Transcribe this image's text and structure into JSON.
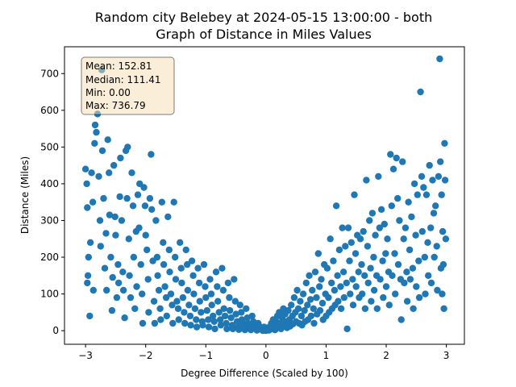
{
  "chart_data": {
    "type": "scatter",
    "title": "Random city Belebey at 2024-05-15 13:00:00  - both",
    "subtitle": "Graph of Distance in Miles Values",
    "xlabel": "Degree Difference (Scaled by 100)",
    "ylabel": "Distance (Miles)",
    "xlim": [
      -3.35,
      3.3
    ],
    "ylim": [
      -37,
      773
    ],
    "xticks": [
      -3,
      -2,
      -1,
      0,
      1,
      2,
      3
    ],
    "yticks": [
      0,
      100,
      200,
      300,
      400,
      500,
      600,
      700
    ],
    "grid": false,
    "marker_color": "#1f77b4",
    "stats_box": {
      "mean": "Mean: 152.81",
      "median": "Median: 111.41",
      "min": "Min: 0.00",
      "max": "Max: 736.79",
      "facecolor": "#f5deb3"
    },
    "points": [
      [
        -3.0,
        440
      ],
      [
        -2.98,
        400
      ],
      [
        -2.97,
        335
      ],
      [
        -2.95,
        200
      ],
      [
        -2.96,
        150
      ],
      [
        -2.97,
        130
      ],
      [
        -2.93,
        40
      ],
      [
        -2.92,
        240
      ],
      [
        -2.9,
        430
      ],
      [
        -2.88,
        350
      ],
      [
        -2.87,
        110
      ],
      [
        -2.85,
        510
      ],
      [
        -2.84,
        560
      ],
      [
        -2.82,
        540
      ],
      [
        -2.8,
        590
      ],
      [
        -2.78,
        420
      ],
      [
        -2.76,
        300
      ],
      [
        -2.75,
        230
      ],
      [
        -2.73,
        710
      ],
      [
        -2.72,
        490
      ],
      [
        -2.7,
        360
      ],
      [
        -2.68,
        170
      ],
      [
        -2.66,
        265
      ],
      [
        -2.65,
        110
      ],
      [
        -2.63,
        520
      ],
      [
        -2.61,
        430
      ],
      [
        -2.6,
        315
      ],
      [
        -2.58,
        200
      ],
      [
        -2.56,
        55
      ],
      [
        -2.55,
        145
      ],
      [
        -2.53,
        450
      ],
      [
        -2.51,
        310
      ],
      [
        -2.5,
        260
      ],
      [
        -2.48,
        90
      ],
      [
        -2.46,
        180
      ],
      [
        -2.45,
        130
      ],
      [
        -2.43,
        365
      ],
      [
        -2.42,
        470
      ],
      [
        -2.4,
        300
      ],
      [
        -2.38,
        160
      ],
      [
        -2.37,
        110
      ],
      [
        -2.35,
        35
      ],
      [
        -2.33,
        490
      ],
      [
        -2.31,
        360
      ],
      [
        -2.3,
        500
      ],
      [
        -2.28,
        250
      ],
      [
        -2.27,
        150
      ],
      [
        -2.25,
        90
      ],
      [
        -2.23,
        430
      ],
      [
        -2.21,
        340
      ],
      [
        -2.2,
        200
      ],
      [
        -2.18,
        60
      ],
      [
        -2.16,
        270
      ],
      [
        -2.15,
        120
      ],
      [
        -2.13,
        370
      ],
      [
        -2.11,
        280
      ],
      [
        -2.1,
        400
      ],
      [
        -2.08,
        180
      ],
      [
        -2.06,
        100
      ],
      [
        -2.05,
        20
      ],
      [
        -2.03,
        390
      ],
      [
        -2.01,
        340
      ],
      [
        -2.0,
        260
      ],
      [
        -1.98,
        220
      ],
      [
        -1.96,
        140
      ],
      [
        -1.95,
        50
      ],
      [
        -1.93,
        360
      ],
      [
        -1.91,
        480
      ],
      [
        -1.9,
        330
      ],
      [
        -1.88,
        190
      ],
      [
        -1.86,
        80
      ],
      [
        -1.85,
        20
      ],
      [
        -1.83,
        300
      ],
      [
        -1.81,
        200
      ],
      [
        -1.8,
        150
      ],
      [
        -1.78,
        110
      ],
      [
        -1.76,
        60
      ],
      [
        -1.75,
        30
      ],
      [
        -1.73,
        350
      ],
      [
        -1.71,
        240
      ],
      [
        -1.7,
        180
      ],
      [
        -1.68,
        120
      ],
      [
        -1.66,
        90
      ],
      [
        -1.65,
        40
      ],
      [
        -1.63,
        310
      ],
      [
        -1.61,
        220
      ],
      [
        -1.6,
        160
      ],
      [
        -1.58,
        100
      ],
      [
        -1.56,
        70
      ],
      [
        -1.55,
        20
      ],
      [
        -1.53,
        350
      ],
      [
        -1.51,
        200
      ],
      [
        -1.5,
        140
      ],
      [
        -1.48,
        80
      ],
      [
        -1.46,
        60
      ],
      [
        -1.45,
        30
      ],
      [
        -1.43,
        240
      ],
      [
        -1.41,
        170
      ],
      [
        -1.4,
        130
      ],
      [
        -1.38,
        90
      ],
      [
        -1.36,
        50
      ],
      [
        -1.35,
        20
      ],
      [
        -1.33,
        220
      ],
      [
        -1.31,
        180
      ],
      [
        -1.3,
        110
      ],
      [
        -1.28,
        70
      ],
      [
        -1.26,
        40
      ],
      [
        -1.25,
        15
      ],
      [
        -1.23,
        190
      ],
      [
        -1.21,
        150
      ],
      [
        -1.2,
        100
      ],
      [
        -1.18,
        60
      ],
      [
        -1.16,
        30
      ],
      [
        -1.15,
        10
      ],
      [
        -1.13,
        170
      ],
      [
        -1.11,
        130
      ],
      [
        -1.1,
        80
      ],
      [
        -1.08,
        50
      ],
      [
        -1.06,
        25
      ],
      [
        -1.05,
        15
      ],
      [
        -1.03,
        180
      ],
      [
        -1.01,
        120
      ],
      [
        -1.0,
        90
      ],
      [
        -0.98,
        55
      ],
      [
        -0.96,
        30
      ],
      [
        -0.95,
        10
      ],
      [
        -0.93,
        140
      ],
      [
        -0.91,
        100
      ],
      [
        -0.9,
        70
      ],
      [
        -0.88,
        40
      ],
      [
        -0.86,
        25
      ],
      [
        -0.85,
        5
      ],
      [
        -0.83,
        160
      ],
      [
        -0.81,
        120
      ],
      [
        -0.8,
        80
      ],
      [
        -0.78,
        50
      ],
      [
        -0.76,
        30
      ],
      [
        -0.75,
        15
      ],
      [
        -0.73,
        170
      ],
      [
        -0.71,
        110
      ],
      [
        -0.7,
        60
      ],
      [
        -0.68,
        40
      ],
      [
        -0.66,
        20
      ],
      [
        -0.65,
        5
      ],
      [
        -0.63,
        130
      ],
      [
        -0.61,
        90
      ],
      [
        -0.6,
        55
      ],
      [
        -0.58,
        35
      ],
      [
        -0.56,
        15
      ],
      [
        -0.55,
        5
      ],
      [
        -0.53,
        140
      ],
      [
        -0.51,
        80
      ],
      [
        -0.5,
        45
      ],
      [
        -0.48,
        25
      ],
      [
        -0.46,
        10
      ],
      [
        -0.45,
        3
      ],
      [
        -0.43,
        70
      ],
      [
        -0.41,
        50
      ],
      [
        -0.4,
        30
      ],
      [
        -0.38,
        20
      ],
      [
        -0.36,
        10
      ],
      [
        -0.35,
        2
      ],
      [
        -0.33,
        60
      ],
      [
        -0.31,
        35
      ],
      [
        -0.3,
        20
      ],
      [
        -0.28,
        12
      ],
      [
        -0.26,
        8
      ],
      [
        -0.25,
        2
      ],
      [
        -0.23,
        40
      ],
      [
        -0.21,
        25
      ],
      [
        -0.2,
        15
      ],
      [
        -0.18,
        8
      ],
      [
        -0.16,
        5
      ],
      [
        -0.15,
        1
      ],
      [
        -0.13,
        20
      ],
      [
        -0.11,
        12
      ],
      [
        -0.1,
        8
      ],
      [
        -0.08,
        4
      ],
      [
        -0.06,
        2
      ],
      [
        -0.05,
        0
      ],
      [
        -0.03,
        10
      ],
      [
        -0.01,
        5
      ],
      [
        0.0,
        0
      ],
      [
        0.02,
        3
      ],
      [
        0.04,
        8
      ],
      [
        0.05,
        1
      ],
      [
        0.07,
        12
      ],
      [
        0.09,
        20
      ],
      [
        0.1,
        5
      ],
      [
        0.12,
        30
      ],
      [
        0.14,
        15
      ],
      [
        0.15,
        2
      ],
      [
        0.17,
        25
      ],
      [
        0.19,
        40
      ],
      [
        0.2,
        10
      ],
      [
        0.22,
        50
      ],
      [
        0.24,
        20
      ],
      [
        0.25,
        5
      ],
      [
        0.27,
        35
      ],
      [
        0.29,
        60
      ],
      [
        0.3,
        15
      ],
      [
        0.32,
        45
      ],
      [
        0.34,
        25
      ],
      [
        0.35,
        8
      ],
      [
        0.37,
        55
      ],
      [
        0.39,
        30
      ],
      [
        0.4,
        12
      ],
      [
        0.42,
        70
      ],
      [
        0.44,
        40
      ],
      [
        0.45,
        18
      ],
      [
        0.47,
        90
      ],
      [
        0.49,
        50
      ],
      [
        0.5,
        25
      ],
      [
        0.52,
        110
      ],
      [
        0.54,
        60
      ],
      [
        0.55,
        20
      ],
      [
        0.57,
        80
      ],
      [
        0.59,
        40
      ],
      [
        0.6,
        15
      ],
      [
        0.62,
        100
      ],
      [
        0.64,
        55
      ],
      [
        0.65,
        25
      ],
      [
        0.67,
        130
      ],
      [
        0.69,
        70
      ],
      [
        0.7,
        30
      ],
      [
        0.72,
        150
      ],
      [
        0.74,
        85
      ],
      [
        0.75,
        40
      ],
      [
        0.77,
        110
      ],
      [
        0.79,
        60
      ],
      [
        0.8,
        20
      ],
      [
        0.82,
        160
      ],
      [
        0.84,
        90
      ],
      [
        0.85,
        45
      ],
      [
        0.87,
        210
      ],
      [
        0.89,
        120
      ],
      [
        0.9,
        55
      ],
      [
        0.92,
        140
      ],
      [
        0.94,
        75
      ],
      [
        0.95,
        30
      ],
      [
        0.97,
        180
      ],
      [
        0.99,
        100
      ],
      [
        1.0,
        40
      ],
      [
        1.02,
        170
      ],
      [
        1.04,
        90
      ],
      [
        1.05,
        50
      ],
      [
        1.07,
        250
      ],
      [
        1.09,
        130
      ],
      [
        1.1,
        60
      ],
      [
        1.12,
        190
      ],
      [
        1.14,
        110
      ],
      [
        1.15,
        70
      ],
      [
        1.17,
        340
      ],
      [
        1.19,
        150
      ],
      [
        1.2,
        80
      ],
      [
        1.22,
        220
      ],
      [
        1.24,
        120
      ],
      [
        1.25,
        60
      ],
      [
        1.27,
        280
      ],
      [
        1.29,
        160
      ],
      [
        1.3,
        90
      ],
      [
        1.32,
        230
      ],
      [
        1.34,
        130
      ],
      [
        1.35,
        5
      ],
      [
        1.37,
        280
      ],
      [
        1.39,
        190
      ],
      [
        1.4,
        100
      ],
      [
        1.42,
        240
      ],
      [
        1.44,
        140
      ],
      [
        1.45,
        70
      ],
      [
        1.47,
        370
      ],
      [
        1.49,
        210
      ],
      [
        1.5,
        120
      ],
      [
        1.52,
        260
      ],
      [
        1.54,
        160
      ],
      [
        1.55,
        90
      ],
      [
        1.57,
        250
      ],
      [
        1.59,
        180
      ],
      [
        1.6,
        100
      ],
      [
        1.62,
        270
      ],
      [
        1.64,
        150
      ],
      [
        1.65,
        60
      ],
      [
        1.67,
        410
      ],
      [
        1.69,
        230
      ],
      [
        1.7,
        130
      ],
      [
        1.72,
        300
      ],
      [
        1.74,
        170
      ],
      [
        1.75,
        80
      ],
      [
        1.77,
        320
      ],
      [
        1.79,
        200
      ],
      [
        1.8,
        110
      ],
      [
        1.82,
        260
      ],
      [
        1.84,
        150
      ],
      [
        1.85,
        60
      ],
      [
        1.87,
        420
      ],
      [
        1.89,
        280
      ],
      [
        1.9,
        140
      ],
      [
        1.92,
        330
      ],
      [
        1.94,
        190
      ],
      [
        1.95,
        90
      ],
      [
        1.97,
        290
      ],
      [
        1.99,
        210
      ],
      [
        2.0,
        120
      ],
      [
        2.02,
        250
      ],
      [
        2.04,
        160
      ],
      [
        2.05,
        70
      ],
      [
        2.07,
        480
      ],
      [
        2.09,
        340
      ],
      [
        2.1,
        150
      ],
      [
        2.12,
        440
      ],
      [
        2.14,
        210
      ],
      [
        2.15,
        100
      ],
      [
        2.17,
        470
      ],
      [
        2.19,
        360
      ],
      [
        2.2,
        180
      ],
      [
        2.22,
        300
      ],
      [
        2.24,
        140
      ],
      [
        2.25,
        30
      ],
      [
        2.27,
        460
      ],
      [
        2.29,
        250
      ],
      [
        2.3,
        130
      ],
      [
        2.32,
        280
      ],
      [
        2.34,
        160
      ],
      [
        2.35,
        80
      ],
      [
        2.37,
        350
      ],
      [
        2.39,
        220
      ],
      [
        2.4,
        140
      ],
      [
        2.42,
        310
      ],
      [
        2.44,
        170
      ],
      [
        2.45,
        60
      ],
      [
        2.47,
        400
      ],
      [
        2.49,
        260
      ],
      [
        2.5,
        120
      ],
      [
        2.52,
        370
      ],
      [
        2.54,
        190
      ],
      [
        2.55,
        90
      ],
      [
        2.57,
        650
      ],
      [
        2.59,
        420
      ],
      [
        2.6,
        270
      ],
      [
        2.62,
        390
      ],
      [
        2.64,
        200
      ],
      [
        2.65,
        100
      ],
      [
        2.67,
        370
      ],
      [
        2.69,
        240
      ],
      [
        2.7,
        150
      ],
      [
        2.72,
        450
      ],
      [
        2.74,
        280
      ],
      [
        2.75,
        130
      ],
      [
        2.77,
        410
      ],
      [
        2.79,
        320
      ],
      [
        2.8,
        200
      ],
      [
        2.82,
        340
      ],
      [
        2.84,
        230
      ],
      [
        2.85,
        110
      ],
      [
        2.87,
        420
      ],
      [
        2.89,
        740
      ],
      [
        2.9,
        460
      ],
      [
        2.92,
        370
      ],
      [
        2.94,
        270
      ],
      [
        2.95,
        180
      ],
      [
        2.97,
        510
      ],
      [
        2.98,
        410
      ],
      [
        2.99,
        250
      ],
      [
        2.96,
        60
      ],
      [
        2.93,
        100
      ],
      [
        2.91,
        170
      ]
    ]
  }
}
